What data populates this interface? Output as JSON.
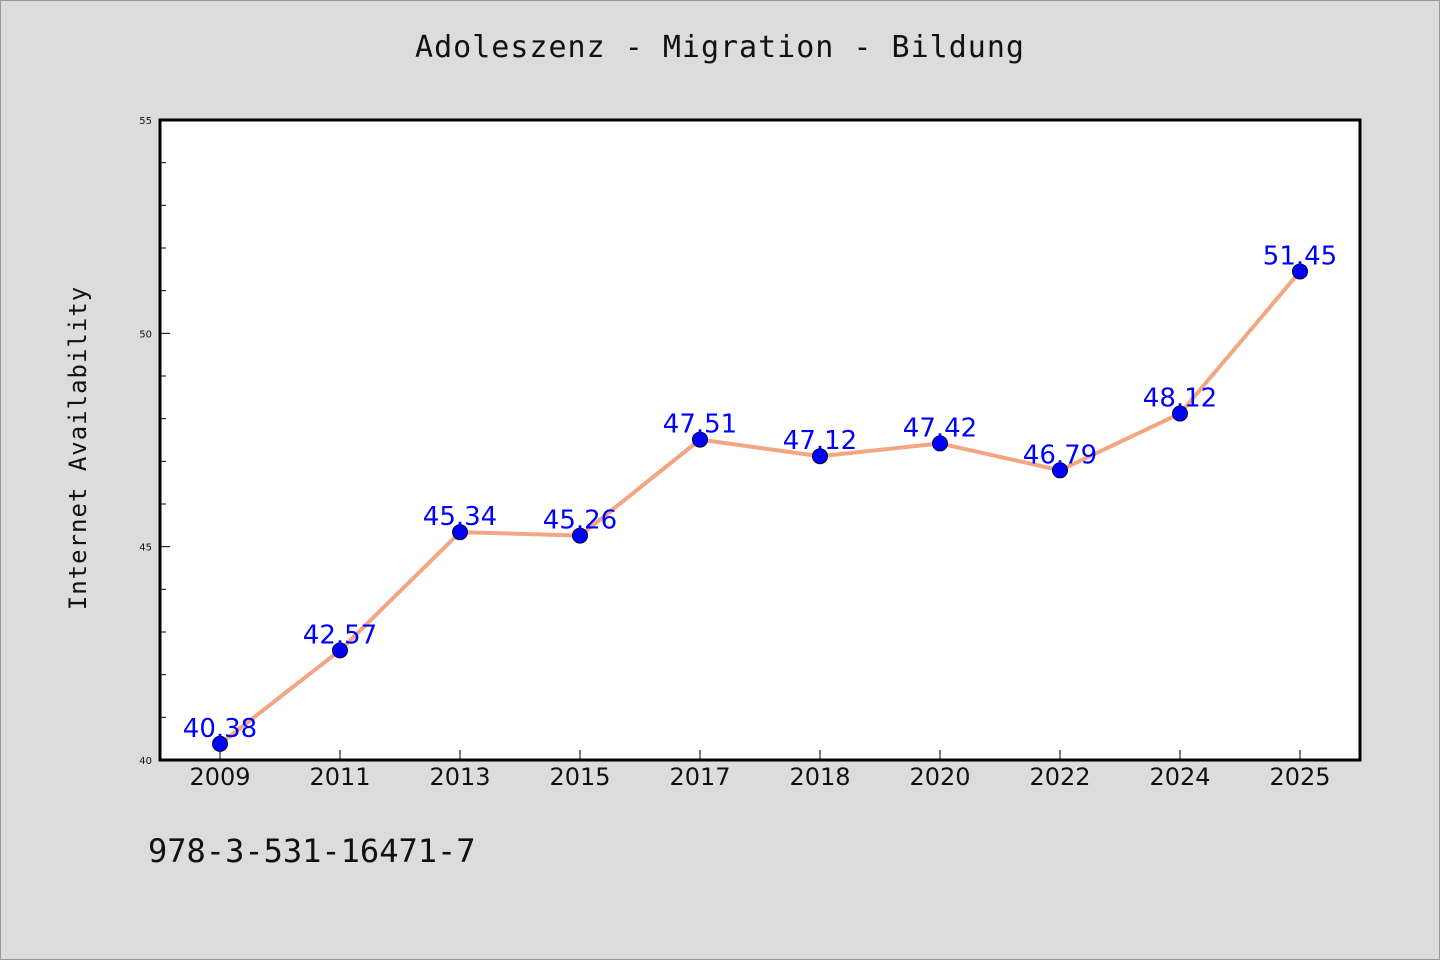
{
  "chart_data": {
    "type": "line",
    "title": "Adoleszenz - Migration - Bildung",
    "xlabel": "",
    "ylabel": "Internet Availability",
    "categories": [
      "2009",
      "2011",
      "2013",
      "2015",
      "2017",
      "2018",
      "2020",
      "2022",
      "2024",
      "2025"
    ],
    "series": [
      {
        "values": [
          40.38,
          42.57,
          45.34,
          45.26,
          47.51,
          47.12,
          47.42,
          46.79,
          48.12,
          51.45
        ],
        "labels": [
          "40.38",
          "42.57",
          "45.34",
          "45.26",
          "47.51",
          "47.12",
          "47.42",
          "46.79",
          "48.12",
          "51.45"
        ],
        "line_color": "#f4a582",
        "marker_color": "#0000ff"
      }
    ],
    "ylim": [
      40,
      55
    ],
    "yticks": [
      "40",
      "45",
      "50",
      "55"
    ],
    "grid": false,
    "legend": "none"
  },
  "footnote": "978-3-531-16471-7"
}
